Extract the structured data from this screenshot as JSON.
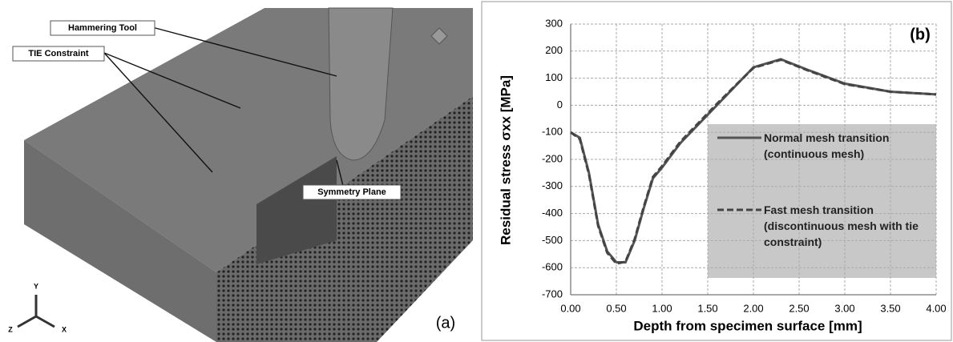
{
  "figure_a": {
    "labels": [
      "Hammering Tool",
      "TIE Constraint",
      "Symmetry Plane"
    ],
    "panel_label": "(a)",
    "axes": [
      "Y",
      "Z",
      "X"
    ]
  },
  "chart_data": {
    "type": "line",
    "title": "(b)",
    "x_label": "Depth from specimen surface [mm]",
    "y_label": "Residual stress σxx [MPa]",
    "x": [
      0,
      0.1,
      0.2,
      0.3,
      0.4,
      0.5,
      0.6,
      0.7,
      0.8,
      0.9,
      1.0,
      1.2,
      1.4,
      1.6,
      1.8,
      2.0,
      2.3,
      2.6,
      3.0,
      3.5,
      4.0
    ],
    "series": [
      {
        "name": "Normal mesh transition (continuous mesh)",
        "color": "#555555",
        "dash": false,
        "values": [
          -100,
          -120,
          -250,
          -440,
          -540,
          -580,
          -580,
          -500,
          -380,
          -270,
          -230,
          -140,
          -70,
          0,
          70,
          140,
          170,
          130,
          80,
          50,
          40
        ]
      },
      {
        "name": "Fast mesh transition (discontinuous mesh with tie constraint)",
        "color": "#444444",
        "dash": true,
        "values": [
          -100,
          -125,
          -255,
          -445,
          -545,
          -585,
          -578,
          -495,
          -375,
          -265,
          -225,
          -135,
          -65,
          5,
          72,
          138,
          168,
          128,
          78,
          50,
          40
        ]
      }
    ],
    "xlim": [
      0,
      4
    ],
    "ylim": [
      -700,
      300
    ],
    "xticks": [
      {
        "value": 0,
        "label": "0.00"
      },
      {
        "value": 0.5,
        "label": "0.50"
      },
      {
        "value": 1,
        "label": "1.00"
      },
      {
        "value": 1.5,
        "label": "1.50"
      },
      {
        "value": 2,
        "label": "2.00"
      },
      {
        "value": 2.5,
        "label": "2.50"
      },
      {
        "value": 3,
        "label": "3.00"
      },
      {
        "value": 3.5,
        "label": "3.50"
      },
      {
        "value": 4,
        "label": "4.00"
      }
    ],
    "yticks": [
      -700,
      -600,
      -500,
      -400,
      -300,
      -200,
      -100,
      0,
      100,
      200,
      300
    ],
    "grid": true
  }
}
